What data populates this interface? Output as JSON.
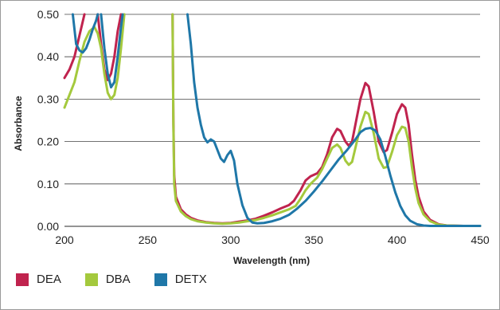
{
  "chart_data": {
    "type": "line",
    "title": "",
    "xlabel": "Wavelength (nm)",
    "ylabel": "Absorbance",
    "xlim": [
      200,
      450
    ],
    "ylim": [
      0,
      0.5
    ],
    "x_ticks": [
      "200",
      "250",
      "300",
      "350",
      "400",
      "450"
    ],
    "y_ticks": [
      "0.00",
      "0.10",
      "0.20",
      "0.30",
      "0.40",
      "0.50"
    ],
    "grid": "horizontal",
    "legend_position": "bottom-left",
    "series": [
      {
        "name": "DEA",
        "color": "#c0234e",
        "segments": [
          [
            [
              200,
              0.35
            ],
            [
              203,
              0.37
            ],
            [
              206,
              0.4
            ],
            [
              209,
              0.45
            ],
            [
              212,
              0.5
            ]
          ],
          [
            [
              220,
              0.5
            ],
            [
              222,
              0.43
            ],
            [
              224,
              0.37
            ],
            [
              226,
              0.345
            ],
            [
              228,
              0.36
            ],
            [
              230,
              0.4
            ],
            [
              232,
              0.46
            ],
            [
              234,
              0.5
            ]
          ],
          [
            [
              265,
              0.5
            ],
            [
              265.5,
              0.25
            ],
            [
              266,
              0.12
            ],
            [
              267,
              0.07
            ],
            [
              270,
              0.04
            ],
            [
              273,
              0.028
            ],
            [
              276,
              0.02
            ],
            [
              280,
              0.014
            ],
            [
              285,
              0.01
            ],
            [
              290,
              0.008
            ],
            [
              295,
              0.007
            ],
            [
              300,
              0.008
            ],
            [
              305,
              0.011
            ],
            [
              310,
              0.014
            ],
            [
              315,
              0.018
            ],
            [
              320,
              0.025
            ],
            [
              325,
              0.033
            ],
            [
              330,
              0.042
            ],
            [
              335,
              0.05
            ],
            [
              338,
              0.06
            ],
            [
              342,
              0.085
            ],
            [
              345,
              0.108
            ],
            [
              348,
              0.118
            ],
            [
              352,
              0.125
            ],
            [
              355,
              0.14
            ],
            [
              358,
              0.17
            ],
            [
              361,
              0.21
            ],
            [
              364,
              0.23
            ],
            [
              366,
              0.225
            ],
            [
              369,
              0.2
            ],
            [
              371,
              0.19
            ],
            [
              373,
              0.2
            ],
            [
              375,
              0.24
            ],
            [
              378,
              0.3
            ],
            [
              381,
              0.338
            ],
            [
              383,
              0.33
            ],
            [
              386,
              0.27
            ],
            [
              389,
              0.2
            ],
            [
              392,
              0.175
            ],
            [
              394,
              0.18
            ],
            [
              397,
              0.22
            ],
            [
              400,
              0.265
            ],
            [
              403,
              0.288
            ],
            [
              405,
              0.28
            ],
            [
              407,
              0.24
            ],
            [
              409,
              0.17
            ],
            [
              411,
              0.11
            ],
            [
              413,
              0.07
            ],
            [
              416,
              0.035
            ],
            [
              420,
              0.015
            ],
            [
              425,
              0.005
            ],
            [
              430,
              0.002
            ],
            [
              440,
              0.001
            ],
            [
              450,
              0.001
            ]
          ]
        ]
      },
      {
        "name": "DBA",
        "color": "#a4c93d",
        "segments": [
          [
            [
              200,
              0.28
            ],
            [
              203,
              0.31
            ],
            [
              206,
              0.34
            ],
            [
              209,
              0.39
            ],
            [
              212,
              0.435
            ],
            [
              215,
              0.46
            ],
            [
              218,
              0.47
            ],
            [
              220,
              0.455
            ],
            [
              222,
              0.42
            ],
            [
              224,
              0.36
            ],
            [
              226,
              0.315
            ],
            [
              228,
              0.3
            ],
            [
              230,
              0.31
            ],
            [
              232,
              0.35
            ],
            [
              234,
              0.42
            ],
            [
              236,
              0.5
            ]
          ],
          [
            [
              265,
              0.5
            ],
            [
              265.5,
              0.24
            ],
            [
              266,
              0.1
            ],
            [
              267,
              0.06
            ],
            [
              270,
              0.035
            ],
            [
              273,
              0.024
            ],
            [
              276,
              0.017
            ],
            [
              280,
              0.012
            ],
            [
              285,
              0.009
            ],
            [
              290,
              0.007
            ],
            [
              295,
              0.006
            ],
            [
              300,
              0.007
            ],
            [
              305,
              0.009
            ],
            [
              310,
              0.012
            ],
            [
              315,
              0.015
            ],
            [
              320,
              0.02
            ],
            [
              325,
              0.026
            ],
            [
              330,
              0.033
            ],
            [
              335,
              0.04
            ],
            [
              339,
              0.048
            ],
            [
              342,
              0.065
            ],
            [
              345,
              0.085
            ],
            [
              348,
              0.1
            ],
            [
              352,
              0.115
            ],
            [
              355,
              0.135
            ],
            [
              358,
              0.16
            ],
            [
              361,
              0.185
            ],
            [
              364,
              0.193
            ],
            [
              366,
              0.185
            ],
            [
              369,
              0.155
            ],
            [
              371,
              0.145
            ],
            [
              373,
              0.152
            ],
            [
              375,
              0.185
            ],
            [
              378,
              0.235
            ],
            [
              381,
              0.27
            ],
            [
              383,
              0.265
            ],
            [
              386,
              0.22
            ],
            [
              389,
              0.16
            ],
            [
              392,
              0.138
            ],
            [
              394,
              0.14
            ],
            [
              397,
              0.175
            ],
            [
              400,
              0.215
            ],
            [
              403,
              0.235
            ],
            [
              405,
              0.232
            ],
            [
              407,
              0.2
            ],
            [
              409,
              0.14
            ],
            [
              411,
              0.09
            ],
            [
              413,
              0.055
            ],
            [
              416,
              0.028
            ],
            [
              420,
              0.012
            ],
            [
              425,
              0.004
            ],
            [
              430,
              0.002
            ],
            [
              440,
              0.001
            ],
            [
              450,
              0.001
            ]
          ]
        ]
      },
      {
        "name": "DETX",
        "color": "#1f77a8",
        "segments": [
          [
            [
              205,
              0.5
            ],
            [
              207,
              0.43
            ],
            [
              209,
              0.415
            ],
            [
              211,
              0.41
            ],
            [
              213,
              0.42
            ],
            [
              215,
              0.44
            ],
            [
              217,
              0.465
            ],
            [
              219,
              0.485
            ],
            [
              220,
              0.5
            ]
          ],
          [
            [
              222,
              0.5
            ],
            [
              224,
              0.42
            ],
            [
              226,
              0.36
            ],
            [
              228,
              0.328
            ],
            [
              230,
              0.34
            ],
            [
              232,
              0.4
            ],
            [
              234,
              0.47
            ],
            [
              235,
              0.5
            ]
          ],
          [
            [
              274,
              0.5
            ],
            [
              276,
              0.43
            ],
            [
              278,
              0.34
            ],
            [
              280,
              0.28
            ],
            [
              282,
              0.24
            ],
            [
              284,
              0.21
            ],
            [
              286,
              0.198
            ],
            [
              288,
              0.205
            ],
            [
              290,
              0.2
            ],
            [
              292,
              0.18
            ],
            [
              294,
              0.16
            ],
            [
              296,
              0.152
            ],
            [
              298,
              0.168
            ],
            [
              300,
              0.178
            ],
            [
              302,
              0.155
            ],
            [
              304,
              0.1
            ],
            [
              307,
              0.05
            ],
            [
              310,
              0.02
            ],
            [
              313,
              0.009
            ],
            [
              316,
              0.007
            ],
            [
              320,
              0.008
            ],
            [
              325,
              0.012
            ],
            [
              330,
              0.018
            ],
            [
              335,
              0.027
            ],
            [
              340,
              0.042
            ],
            [
              345,
              0.06
            ],
            [
              350,
              0.082
            ],
            [
              355,
              0.106
            ],
            [
              360,
              0.132
            ],
            [
              365,
              0.158
            ],
            [
              370,
              0.18
            ],
            [
              375,
              0.205
            ],
            [
              378,
              0.222
            ],
            [
              381,
              0.23
            ],
            [
              384,
              0.232
            ],
            [
              387,
              0.226
            ],
            [
              390,
              0.205
            ],
            [
              393,
              0.165
            ],
            [
              396,
              0.12
            ],
            [
              399,
              0.08
            ],
            [
              402,
              0.048
            ],
            [
              405,
              0.026
            ],
            [
              408,
              0.013
            ],
            [
              412,
              0.005
            ],
            [
              416,
              0.002
            ],
            [
              420,
              0.001
            ],
            [
              430,
              0.001
            ],
            [
              440,
              0.001
            ],
            [
              450,
              0.001
            ]
          ]
        ]
      }
    ]
  }
}
